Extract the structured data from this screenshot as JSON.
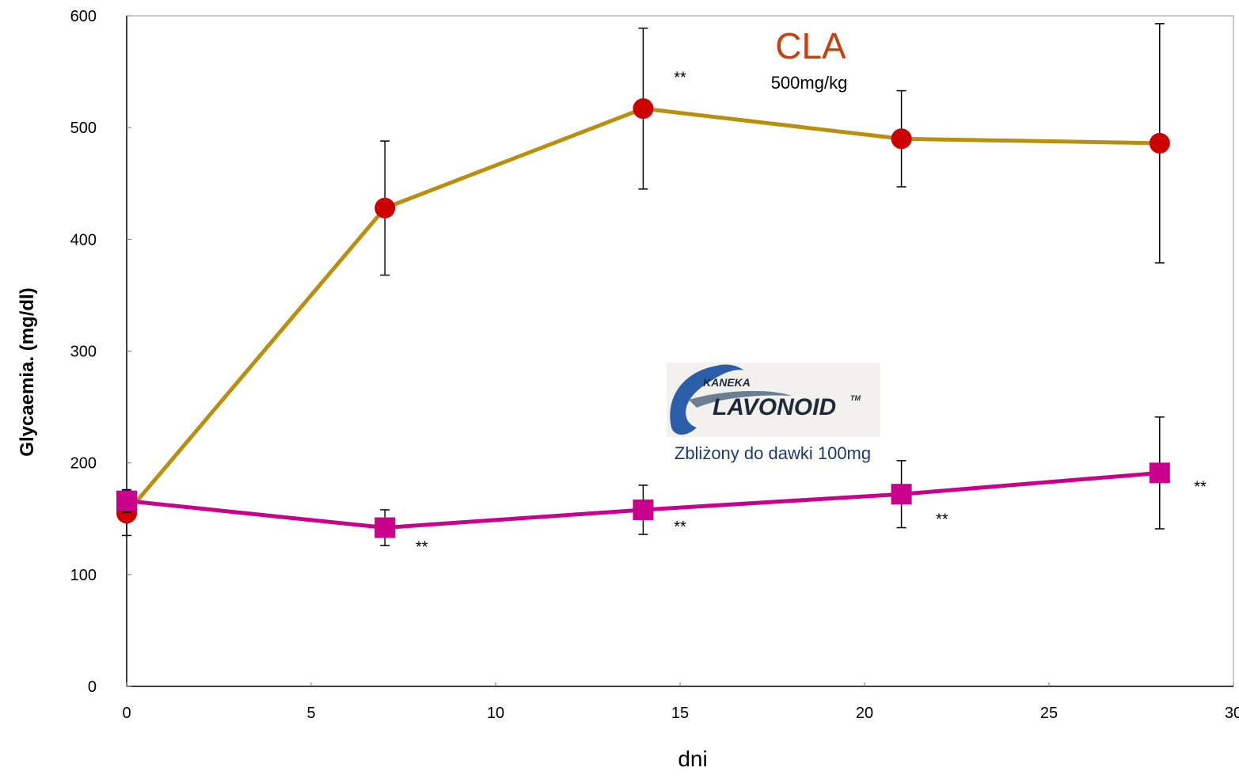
{
  "chart_data": {
    "type": "line",
    "xlabel": "dni",
    "ylabel": "Glycaemia. (mg/dl)",
    "xlim": [
      0,
      30
    ],
    "ylim": [
      0,
      600
    ],
    "x_ticks": [
      "0",
      "5",
      "10",
      "15",
      "20",
      "25",
      "30"
    ],
    "y_ticks": [
      "0",
      "100",
      "200",
      "300",
      "400",
      "500",
      "600"
    ],
    "grid": false,
    "series": [
      {
        "color": "#b8900d",
        "marker": "circle",
        "marker_color": "#cc0000",
        "points": [
          {
            "x": 0,
            "y": 155,
            "err": 20
          },
          {
            "x": 7,
            "y": 428,
            "err": 60
          },
          {
            "x": 14,
            "y": 517,
            "err": 72
          },
          {
            "x": 21,
            "y": 490,
            "err": 43
          },
          {
            "x": 28,
            "y": 486,
            "err": 107
          }
        ]
      },
      {
        "color": "#c8008c",
        "marker": "square",
        "marker_color": "#c8008c",
        "points": [
          {
            "x": 0,
            "y": 166,
            "err": 10
          },
          {
            "x": 7,
            "y": 142,
            "err": 16
          },
          {
            "x": 14,
            "y": 158,
            "err": 22
          },
          {
            "x": 21,
            "y": 172,
            "err": 30
          },
          {
            "x": 28,
            "y": 191,
            "err": 50
          }
        ]
      }
    ],
    "annotations": [
      {
        "text": "**",
        "x": 15,
        "y": 540
      },
      {
        "text": "**",
        "x": 8,
        "y": 120
      },
      {
        "text": "**",
        "x": 15,
        "y": 138
      },
      {
        "text": "**",
        "x": 22.1,
        "y": 145
      },
      {
        "text": "**",
        "x": 29.1,
        "y": 174
      }
    ],
    "cla_label": {
      "title": "CLA",
      "subtitle": "500mg/kg"
    },
    "flavonoid_label": {
      "logo_small": "KANEKA",
      "logo_main": "LAVONOID",
      "logo_tm": "TM",
      "caption": "Zbliżony do dawki 100mg"
    }
  }
}
